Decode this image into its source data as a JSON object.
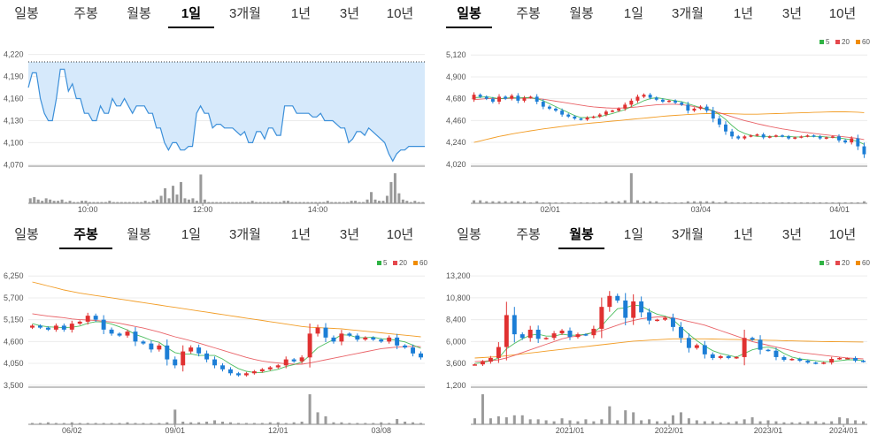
{
  "tab_labels": [
    "일봉",
    "주봉",
    "월봉",
    "1일",
    "3개월",
    "1년",
    "3년",
    "10년"
  ],
  "colors": {
    "up": "#e03131",
    "down": "#1c7ed6",
    "ma5": "#2fb344",
    "ma20": "#e5484d",
    "ma60": "#f08c00",
    "area_line": "#3b8fd9",
    "area_fill": "#d6e9fb",
    "volume": "#9a9a9a"
  },
  "legend_labels": [
    "5",
    "20",
    "60"
  ],
  "chart_data": [
    {
      "type": "area",
      "panel": "1일",
      "active_tab": 3,
      "y_ticks": [
        "4,220",
        "4,190",
        "4,160",
        "4,130",
        "4,100",
        "4,070"
      ],
      "y_tick_values": [
        4220,
        4190,
        4160,
        4130,
        4100,
        4070
      ],
      "ylim": [
        4068,
        4222
      ],
      "x_ticks": [
        "10:00",
        "12:00",
        "14:00"
      ],
      "x_tick_positions": [
        0.15,
        0.44,
        0.73
      ],
      "reference_line": 4210,
      "price": [
        4175,
        4195,
        4195,
        4160,
        4140,
        4130,
        4130,
        4160,
        4200,
        4200,
        4170,
        4180,
        4160,
        4160,
        4140,
        4140,
        4130,
        4130,
        4150,
        4140,
        4140,
        4160,
        4150,
        4150,
        4160,
        4150,
        4140,
        4150,
        4150,
        4150,
        4140,
        4140,
        4120,
        4120,
        4100,
        4090,
        4100,
        4100,
        4090,
        4090,
        4095,
        4095,
        4140,
        4150,
        4140,
        4140,
        4120,
        4125,
        4125,
        4120,
        4120,
        4120,
        4115,
        4110,
        4115,
        4100,
        4100,
        4115,
        4115,
        4105,
        4120,
        4120,
        4110,
        4110,
        4150,
        4150,
        4150,
        4140,
        4140,
        4140,
        4140,
        4135,
        4135,
        4140,
        4130,
        4130,
        4130,
        4125,
        4120,
        4120,
        4100,
        4105,
        4115,
        4115,
        4110,
        4120,
        4115,
        4110,
        4105,
        4100,
        4085,
        4075,
        4085,
        4090,
        4090,
        4095,
        4095,
        4095,
        4095,
        4095
      ],
      "volume": [
        4,
        5,
        3,
        2,
        4,
        3,
        2,
        2,
        3,
        1,
        2,
        1,
        1,
        2,
        2,
        1,
        1,
        1,
        1,
        1,
        2,
        1,
        1,
        1,
        1,
        1,
        1,
        1,
        1,
        2,
        1,
        2,
        3,
        6,
        12,
        4,
        14,
        7,
        17,
        4,
        3,
        4,
        2,
        23,
        3,
        1,
        1,
        1,
        1,
        1,
        1,
        1,
        1,
        1,
        1,
        1,
        2,
        1,
        1,
        1,
        1,
        1,
        1,
        1,
        2,
        2,
        1,
        1,
        1,
        1,
        1,
        1,
        1,
        1,
        1,
        2,
        1,
        1,
        1,
        1,
        1,
        2,
        2,
        1,
        1,
        3,
        9,
        3,
        2,
        2,
        6,
        17,
        24,
        8,
        3,
        2,
        1,
        2,
        1,
        1
      ]
    },
    {
      "type": "candlestick",
      "panel": "일봉",
      "active_tab": 0,
      "y_ticks": [
        "5,120",
        "4,900",
        "4,680",
        "4,460",
        "4,240",
        "4,020"
      ],
      "y_tick_values": [
        5120,
        4900,
        4680,
        4460,
        4240,
        4020
      ],
      "ylim": [
        4000,
        5140
      ],
      "x_ticks": [
        "02/01",
        "03/04",
        "04/01"
      ],
      "x_tick_positions": [
        0.2,
        0.58,
        0.93
      ],
      "close": [
        4720,
        4700,
        4680,
        4650,
        4700,
        4680,
        4710,
        4660,
        4690,
        4700,
        4650,
        4600,
        4580,
        4560,
        4520,
        4500,
        4480,
        4470,
        4490,
        4500,
        4520,
        4550,
        4560,
        4580,
        4620,
        4660,
        4700,
        4720,
        4690,
        4670,
        4650,
        4660,
        4640,
        4620,
        4560,
        4580,
        4600,
        4560,
        4480,
        4420,
        4350,
        4300,
        4280,
        4300,
        4310,
        4320,
        4290,
        4300,
        4310,
        4300,
        4280,
        4290,
        4300,
        4310,
        4300,
        4280,
        4290,
        4300,
        4260,
        4240,
        4280,
        4200,
        4120
      ],
      "ma5": [
        4690,
        4695,
        4700,
        4690,
        4680,
        4685,
        4690,
        4688,
        4690,
        4690,
        4680,
        4660,
        4630,
        4600,
        4570,
        4540,
        4510,
        4490,
        4490,
        4495,
        4500,
        4515,
        4530,
        4550,
        4570,
        4600,
        4630,
        4660,
        4680,
        4690,
        4680,
        4670,
        4660,
        4650,
        4630,
        4610,
        4590,
        4580,
        4560,
        4520,
        4470,
        4410,
        4360,
        4330,
        4310,
        4300,
        4300,
        4300,
        4300,
        4300,
        4300,
        4295,
        4295,
        4300,
        4300,
        4300,
        4295,
        4290,
        4285,
        4275,
        4265,
        4250,
        4220
      ],
      "ma20": [
        4670,
        4675,
        4680,
        4680,
        4680,
        4682,
        4684,
        4685,
        4685,
        4685,
        4680,
        4675,
        4665,
        4655,
        4645,
        4635,
        4625,
        4615,
        4605,
        4598,
        4592,
        4588,
        4585,
        4585,
        4588,
        4592,
        4598,
        4605,
        4612,
        4618,
        4622,
        4624,
        4624,
        4620,
        4612,
        4600,
        4586,
        4572,
        4556,
        4538,
        4518,
        4498,
        4478,
        4460,
        4444,
        4428,
        4414,
        4400,
        4388,
        4376,
        4366,
        4356,
        4346,
        4338,
        4330,
        4322,
        4315,
        4308,
        4302,
        4295,
        4288,
        4280,
        4268
      ],
      "ma60": [
        4240,
        4255,
        4270,
        4285,
        4300,
        4312,
        4324,
        4336,
        4346,
        4356,
        4366,
        4376,
        4384,
        4392,
        4400,
        4408,
        4416,
        4424,
        4430,
        4436,
        4442,
        4448,
        4454,
        4460,
        4466,
        4472,
        4478,
        4484,
        4490,
        4496,
        4502,
        4508,
        4512,
        4516,
        4520,
        4524,
        4528,
        4530,
        4532,
        4532,
        4530,
        4528,
        4526,
        4524,
        4524,
        4524,
        4526,
        4528,
        4530,
        4532,
        4534,
        4536,
        4538,
        4540,
        4542,
        4544,
        4546,
        4548,
        4548,
        4548,
        4546,
        4544,
        4540
      ],
      "volume": [
        3,
        3,
        2,
        2,
        2,
        2,
        2,
        2,
        2,
        1,
        2,
        1,
        1,
        1,
        1,
        1,
        1,
        1,
        1,
        1,
        1,
        2,
        2,
        2,
        3,
        30,
        3,
        2,
        2,
        2,
        1,
        1,
        1,
        1,
        2,
        2,
        2,
        2,
        2,
        1,
        2,
        1,
        1,
        1,
        1,
        1,
        1,
        1,
        1,
        1,
        1,
        1,
        1,
        1,
        1,
        1,
        1,
        1,
        1,
        1,
        1,
        1,
        2
      ]
    },
    {
      "type": "candlestick",
      "panel": "주봉",
      "active_tab": 1,
      "y_ticks": [
        "6,250",
        "5,700",
        "5,150",
        "4,600",
        "4,050",
        "3,500"
      ],
      "y_tick_values": [
        6250,
        5700,
        5150,
        4600,
        4050,
        3500
      ],
      "ylim": [
        3450,
        6300
      ],
      "x_ticks": [
        "06/02",
        "09/01",
        "12/01",
        "03/08"
      ],
      "x_tick_positions": [
        0.11,
        0.37,
        0.63,
        0.89
      ],
      "close": [
        5000,
        4950,
        4900,
        5000,
        4900,
        5050,
        5100,
        5250,
        5150,
        4900,
        4800,
        4750,
        4850,
        4600,
        4550,
        4400,
        4500,
        4150,
        4000,
        4350,
        4450,
        4300,
        4150,
        4000,
        3900,
        3800,
        3750,
        3800,
        3850,
        3900,
        3950,
        4000,
        4150,
        4100,
        4200,
        4800,
        4950,
        4700,
        4600,
        4800,
        4750,
        4650,
        4700,
        4650,
        4600,
        4700,
        4500,
        4450,
        4300,
        4200
      ],
      "ma5": [
        5050,
        5000,
        4970,
        4960,
        4950,
        4960,
        4990,
        5060,
        5100,
        5090,
        5040,
        4970,
        4890,
        4780,
        4710,
        4630,
        4580,
        4440,
        4320,
        4280,
        4290,
        4250,
        4250,
        4250,
        4160,
        4030,
        3920,
        3850,
        3820,
        3820,
        3860,
        3900,
        3970,
        4020,
        4080,
        4250,
        4440,
        4550,
        4650,
        4770,
        4760,
        4700,
        4700,
        4710,
        4670,
        4660,
        4630,
        4590,
        4510,
        4430
      ],
      "ma20": [
        5300,
        5270,
        5240,
        5220,
        5200,
        5170,
        5150,
        5140,
        5130,
        5110,
        5090,
        5060,
        5020,
        4980,
        4940,
        4890,
        4840,
        4780,
        4720,
        4670,
        4620,
        4560,
        4500,
        4440,
        4380,
        4320,
        4260,
        4200,
        4150,
        4110,
        4080,
        4060,
        4040,
        4030,
        4030,
        4060,
        4100,
        4140,
        4180,
        4220,
        4260,
        4300,
        4340,
        4380,
        4420,
        4440,
        4460,
        4470,
        4480,
        4470
      ],
      "ma60": [
        6100,
        6050,
        6000,
        5950,
        5900,
        5860,
        5820,
        5790,
        5760,
        5730,
        5700,
        5670,
        5640,
        5610,
        5580,
        5550,
        5520,
        5490,
        5460,
        5430,
        5400,
        5370,
        5340,
        5310,
        5280,
        5250,
        5220,
        5190,
        5160,
        5130,
        5100,
        5070,
        5040,
        5010,
        4980,
        4960,
        4950,
        4940,
        4930,
        4920,
        4900,
        4880,
        4860,
        4840,
        4820,
        4800,
        4780,
        4760,
        4740,
        4720
      ],
      "volume": [
        2,
        2,
        3,
        2,
        2,
        3,
        2,
        2,
        2,
        2,
        2,
        2,
        3,
        2,
        2,
        2,
        2,
        3,
        22,
        4,
        3,
        3,
        4,
        6,
        4,
        3,
        2,
        2,
        2,
        2,
        3,
        3,
        2,
        3,
        4,
        45,
        18,
        12,
        3,
        3,
        2,
        2,
        2,
        2,
        3,
        2,
        8,
        4,
        3,
        2
      ]
    },
    {
      "type": "candlestick",
      "panel": "월봉",
      "active_tab": 2,
      "y_ticks": [
        "13,200",
        "10,800",
        "8,400",
        "6,000",
        "3,600",
        "1,200"
      ],
      "y_tick_values": [
        13200,
        10800,
        8400,
        6000,
        3600,
        1200
      ],
      "ylim": [
        1000,
        13400
      ],
      "x_ticks": [
        "2021/01",
        "2022/01",
        "2023/01",
        "2024/01"
      ],
      "x_tick_positions": [
        0.25,
        0.5,
        0.75,
        0.94
      ],
      "close": [
        3500,
        3800,
        4200,
        5400,
        8900,
        6800,
        6400,
        7300,
        6300,
        6400,
        6900,
        7200,
        6500,
        6800,
        6700,
        7400,
        9800,
        11000,
        10500,
        8600,
        10400,
        9200,
        8300,
        8400,
        8600,
        7600,
        6400,
        5300,
        5600,
        4600,
        4200,
        4400,
        4200,
        4300,
        6400,
        6200,
        5100,
        5000,
        4300,
        4000,
        4100,
        3900,
        3700,
        3600,
        3700,
        4100,
        4200,
        4200,
        3900,
        3800
      ],
      "ma5": [
        3600,
        3700,
        3900,
        4200,
        5200,
        5800,
        6300,
        6700,
        6800,
        6600,
        6600,
        6800,
        6700,
        6700,
        6800,
        7000,
        7700,
        8700,
        9600,
        9700,
        10000,
        9900,
        9400,
        9000,
        8800,
        8400,
        7600,
        6800,
        6100,
        5500,
        5000,
        4700,
        4500,
        4300,
        4700,
        5100,
        5300,
        5400,
        5200,
        4700,
        4300,
        4100,
        4000,
        3900,
        3800,
        3800,
        3900,
        4000,
        4000,
        3900
      ],
      "ma20": [
        3800,
        3850,
        3900,
        4000,
        4200,
        4500,
        4800,
        5100,
        5400,
        5700,
        6000,
        6300,
        6500,
        6600,
        6800,
        7000,
        7200,
        7500,
        7800,
        8100,
        8300,
        8500,
        8600,
        8700,
        8700,
        8600,
        8400,
        8200,
        8000,
        7800,
        7500,
        7200,
        6900,
        6600,
        6300,
        6000,
        5800,
        5600,
        5400,
        5200,
        5000,
        4800,
        4700,
        4600,
        4500,
        4400,
        4300,
        4200,
        4150,
        4100
      ],
      "ma60": [
        4200,
        4250,
        4300,
        4350,
        4450,
        4550,
        4650,
        4750,
        4850,
        4950,
        5050,
        5150,
        5250,
        5350,
        5450,
        5550,
        5650,
        5750,
        5850,
        5950,
        6050,
        6100,
        6150,
        6200,
        6250,
        6300,
        6300,
        6300,
        6300,
        6300,
        6280,
        6260,
        6240,
        6220,
        6200,
        6180,
        6160,
        6140,
        6120,
        6100,
        6080,
        6060,
        6040,
        6020,
        6000,
        5990,
        5980,
        5970,
        5960,
        5950
      ],
      "volume": [
        6,
        30,
        6,
        8,
        7,
        9,
        9,
        5,
        5,
        4,
        3,
        6,
        4,
        3,
        5,
        3,
        5,
        18,
        4,
        14,
        12,
        4,
        5,
        3,
        3,
        9,
        12,
        6,
        4,
        3,
        3,
        2,
        2,
        3,
        5,
        7,
        3,
        4,
        3,
        2,
        2,
        2,
        3,
        3,
        2,
        3,
        7,
        6,
        4,
        3
      ]
    }
  ]
}
